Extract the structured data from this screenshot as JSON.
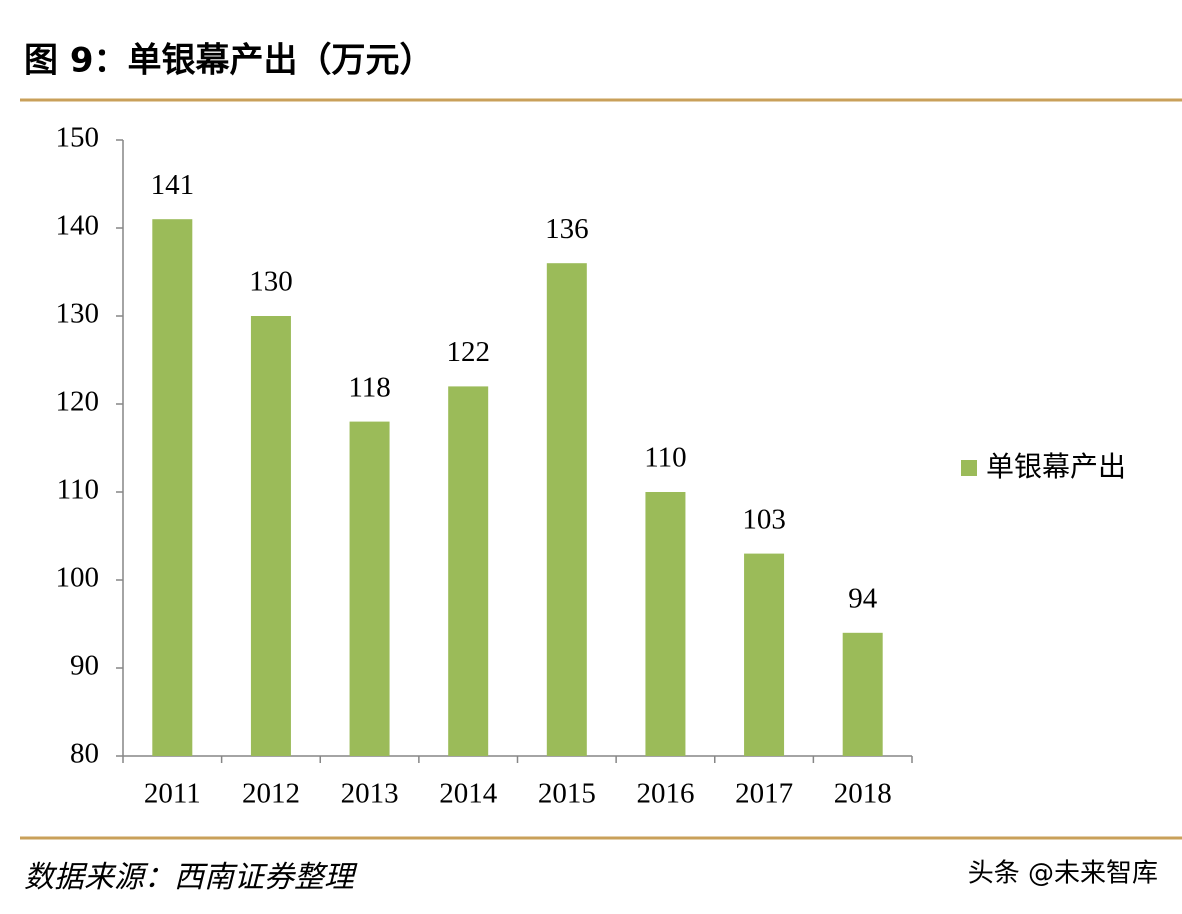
{
  "chart_data": {
    "type": "bar",
    "title": "图 9：单银幕产出（万元）",
    "categories": [
      "2011",
      "2012",
      "2013",
      "2014",
      "2015",
      "2016",
      "2017",
      "2018"
    ],
    "series": [
      {
        "name": "单银幕产出",
        "color": "#9bbb59",
        "values": [
          141,
          130,
          118,
          122,
          136,
          110,
          103,
          94
        ]
      }
    ],
    "ylim": [
      80,
      150
    ],
    "yticks": [
      80,
      90,
      100,
      110,
      120,
      130,
      140,
      150
    ],
    "source": "数据来源：西南证券整理"
  },
  "watermark": "头条 @未来智库"
}
